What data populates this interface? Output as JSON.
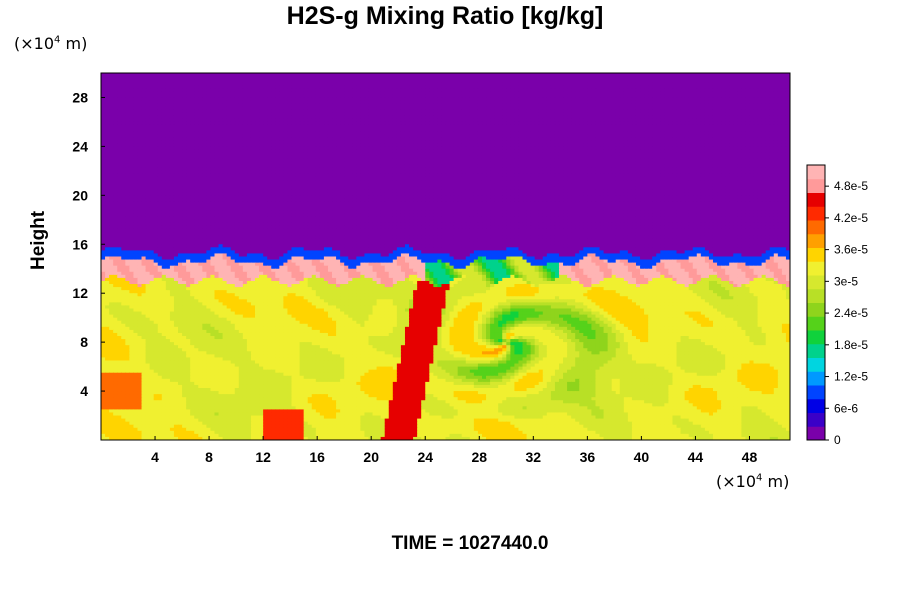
{
  "chart_data": {
    "type": "heatmap",
    "title": "H2S-g Mixing Ratio [kg/kg]",
    "ylabel": "Height",
    "xlabel": "",
    "x_unit_prefix": "(×10",
    "x_unit_exp": "4",
    "x_unit_suffix": " m)",
    "y_unit_prefix": "(×10",
    "y_unit_exp": "4",
    "y_unit_suffix": " m)",
    "xlim": [
      0,
      51
    ],
    "ylim": [
      0,
      30
    ],
    "x_ticks": [
      "4",
      "8",
      "12",
      "16",
      "20",
      "24",
      "28",
      "32",
      "36",
      "40",
      "44",
      "48"
    ],
    "y_ticks": [
      "4",
      "8",
      "12",
      "16",
      "20",
      "24",
      "28"
    ],
    "colorbar": {
      "range": [
        0,
        5.2e-05
      ],
      "tick_labels": [
        "0",
        "6e-6",
        "1.2e-5",
        "1.8e-5",
        "2.4e-5",
        "3e-5",
        "3.6e-5",
        "4.2e-5",
        "4.8e-5"
      ],
      "tick_values": [
        0,
        6e-06,
        1.2e-05,
        1.8e-05,
        2.4e-05,
        3e-05,
        3.6e-05,
        4.2e-05,
        4.8e-05
      ],
      "colors": [
        "#7a00aa",
        "#3a00c8",
        "#0000e6",
        "#0044ff",
        "#0099ff",
        "#00d5e0",
        "#00d28c",
        "#10d23c",
        "#55d21a",
        "#8fd41c",
        "#b8e026",
        "#d6e82e",
        "#f0f030",
        "#ffd400",
        "#ffa000",
        "#ff6a00",
        "#ff2a00",
        "#e60000",
        "#ff9a9a",
        "#ffb4b4"
      ]
    },
    "fields": {
      "upper_region_value": 0,
      "lower_region_value": 3.2e-05,
      "tropopause_height": 15,
      "high_value_layer": [
        13,
        15
      ],
      "notes_values": {
        "background_low": 3.3e-05,
        "core": 3.8e-05,
        "max": 5.2e-05
      }
    },
    "footer": "TIME = 1027440.0"
  }
}
